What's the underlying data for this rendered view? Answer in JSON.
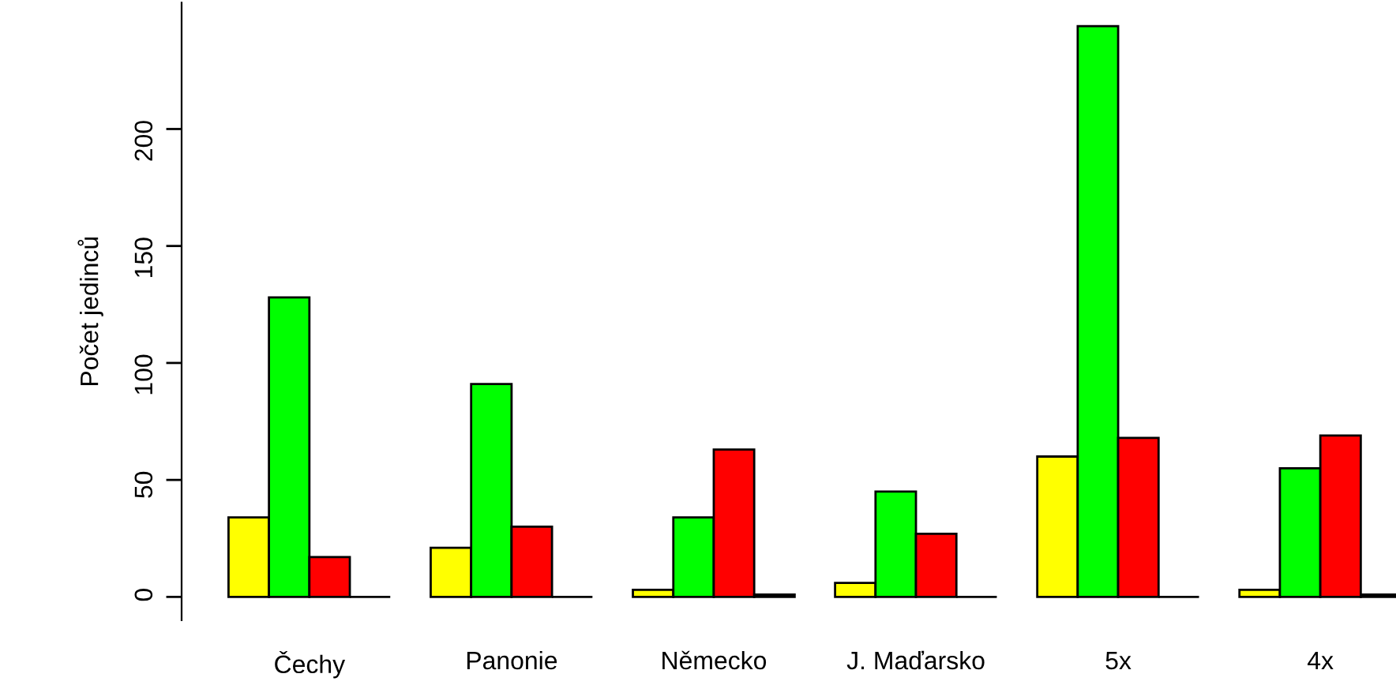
{
  "chart_data": {
    "type": "bar",
    "ylabel": "Počet jedinců",
    "categories": [
      "Čechy",
      "Panonie",
      "Německo",
      "J. Maďarsko",
      "5x",
      "4x"
    ],
    "series": [
      {
        "color": "#ffff00",
        "values": [
          34,
          21,
          3,
          6,
          60,
          3
        ]
      },
      {
        "color": "#00ff00",
        "values": [
          128,
          91,
          34,
          45,
          244,
          55
        ]
      },
      {
        "color": "#ff0000",
        "values": [
          17,
          30,
          63,
          27,
          68,
          69
        ]
      },
      {
        "color": "#000000",
        "values": [
          0,
          0,
          1,
          0,
          0,
          1
        ]
      }
    ],
    "ylim": [
      -10,
      254
    ],
    "yticks": [
      0,
      50,
      100,
      150,
      200
    ],
    "grid": false
  }
}
